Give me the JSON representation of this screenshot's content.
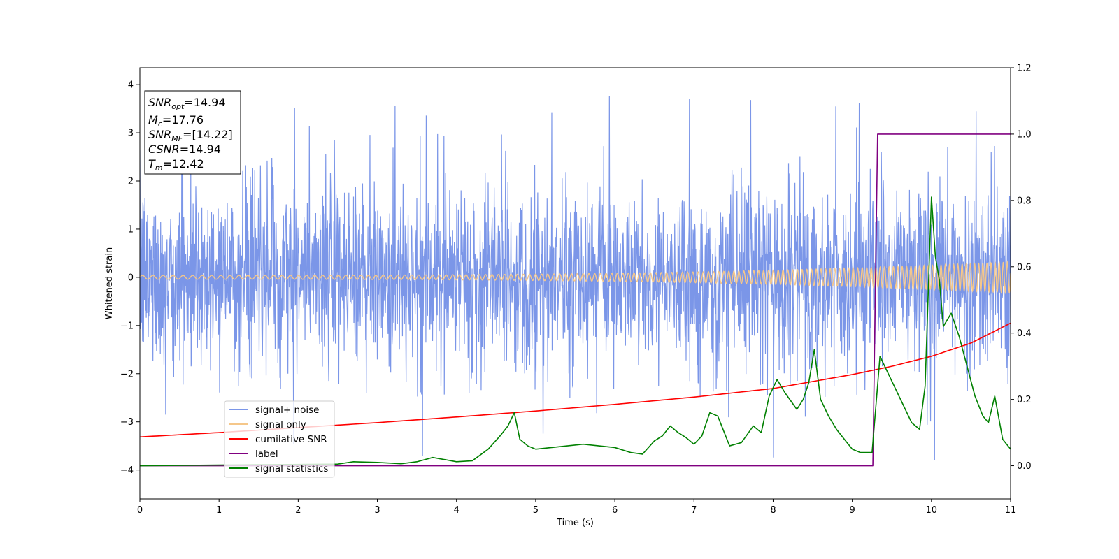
{
  "chart_data": {
    "type": "line",
    "xlabel": "Time (s)",
    "ylabel": "Whitened strain",
    "xlim": [
      0,
      11
    ],
    "ylim": [
      -4.6,
      4.35
    ],
    "y2lim": [
      -0.1,
      1.2
    ],
    "xticks": [
      "0",
      "1",
      "2",
      "3",
      "4",
      "5",
      "6",
      "7",
      "8",
      "9",
      "10",
      "11"
    ],
    "yticks": [
      "−4",
      "−3",
      "−2",
      "−1",
      "0",
      "1",
      "2",
      "3",
      "4"
    ],
    "y2ticks": [
      "0.0",
      "0.2",
      "0.4",
      "0.6",
      "0.8",
      "1.0",
      "1.2"
    ],
    "legend_position": "lower-left",
    "grid": false,
    "annotation": {
      "snr_opt_label": "SNR",
      "snr_opt_sub": "opt",
      "snr_opt_value": "=14.94",
      "mc_label": "M",
      "mc_sub": "c",
      "mc_value": "=17.76",
      "snr_mf_label": "SNR",
      "snr_mf_sub": "MF",
      "snr_mf_value": "=[14.22]",
      "csnr_label": "CSNR",
      "csnr_value": "=14.94",
      "tm_label": "T",
      "tm_sub": "m",
      "tm_value": "=12.42"
    },
    "series": [
      {
        "name": "signal+ noise",
        "color": "#7b96e8",
        "axis": "left",
        "description": "whitened noisy strain, roughly unit variance between -2.5 and 2.8 with spikes up to ±4",
        "envelope": {
          "low": -2.5,
          "high": 2.8,
          "spike_max": 3.9,
          "spike_min": -4.15
        }
      },
      {
        "name": "signal only",
        "color": "#f5c78a",
        "axis": "left",
        "amplitude_start": 0.04,
        "amplitude_end": 0.32
      },
      {
        "name": "cumilative SNR",
        "color": "#ff0000",
        "axis": "right",
        "x": [
          0,
          1,
          2,
          3,
          4,
          5,
          6,
          7,
          8,
          9,
          9.5,
          10,
          10.5,
          11
        ],
        "y": [
          0.087,
          0.1,
          0.115,
          0.13,
          0.147,
          0.165,
          0.185,
          0.207,
          0.233,
          0.275,
          0.3,
          0.33,
          0.37,
          0.43
        ]
      },
      {
        "name": "label",
        "color": "#800080",
        "axis": "right",
        "x": [
          0,
          9.26,
          9.32,
          11
        ],
        "y": [
          0.0,
          0.0,
          1.0,
          1.0
        ]
      },
      {
        "name": "signal statistics",
        "color": "#008000",
        "axis": "right",
        "x": [
          0,
          0.5,
          1,
          1.5,
          2,
          2.5,
          2.7,
          3,
          3.3,
          3.5,
          3.7,
          4,
          4.2,
          4.4,
          4.55,
          4.65,
          4.73,
          4.8,
          4.9,
          5,
          5.2,
          5.4,
          5.6,
          5.8,
          6,
          6.2,
          6.35,
          6.5,
          6.6,
          6.7,
          6.8,
          6.9,
          7.0,
          7.1,
          7.2,
          7.3,
          7.45,
          7.6,
          7.75,
          7.85,
          7.95,
          8.05,
          8.15,
          8.3,
          8.38,
          8.45,
          8.52,
          8.6,
          8.7,
          8.8,
          8.9,
          9.0,
          9.1,
          9.25,
          9.35,
          9.45,
          9.55,
          9.65,
          9.75,
          9.85,
          9.92,
          10.0,
          10.05,
          10.1,
          10.15,
          10.25,
          10.35,
          10.45,
          10.55,
          10.65,
          10.72,
          10.8,
          10.9,
          11
        ],
        "y": [
          0.0,
          0.001,
          0.002,
          0.003,
          0.004,
          0.005,
          0.012,
          0.01,
          0.006,
          0.012,
          0.025,
          0.012,
          0.015,
          0.05,
          0.09,
          0.12,
          0.16,
          0.08,
          0.06,
          0.05,
          0.055,
          0.06,
          0.065,
          0.06,
          0.055,
          0.04,
          0.035,
          0.075,
          0.09,
          0.12,
          0.1,
          0.085,
          0.065,
          0.09,
          0.16,
          0.15,
          0.06,
          0.07,
          0.12,
          0.1,
          0.21,
          0.26,
          0.22,
          0.17,
          0.2,
          0.25,
          0.35,
          0.2,
          0.15,
          0.11,
          0.08,
          0.05,
          0.04,
          0.04,
          0.33,
          0.28,
          0.23,
          0.18,
          0.13,
          0.11,
          0.24,
          0.81,
          0.63,
          0.56,
          0.42,
          0.46,
          0.39,
          0.3,
          0.21,
          0.15,
          0.13,
          0.21,
          0.08,
          0.05
        ]
      }
    ]
  }
}
